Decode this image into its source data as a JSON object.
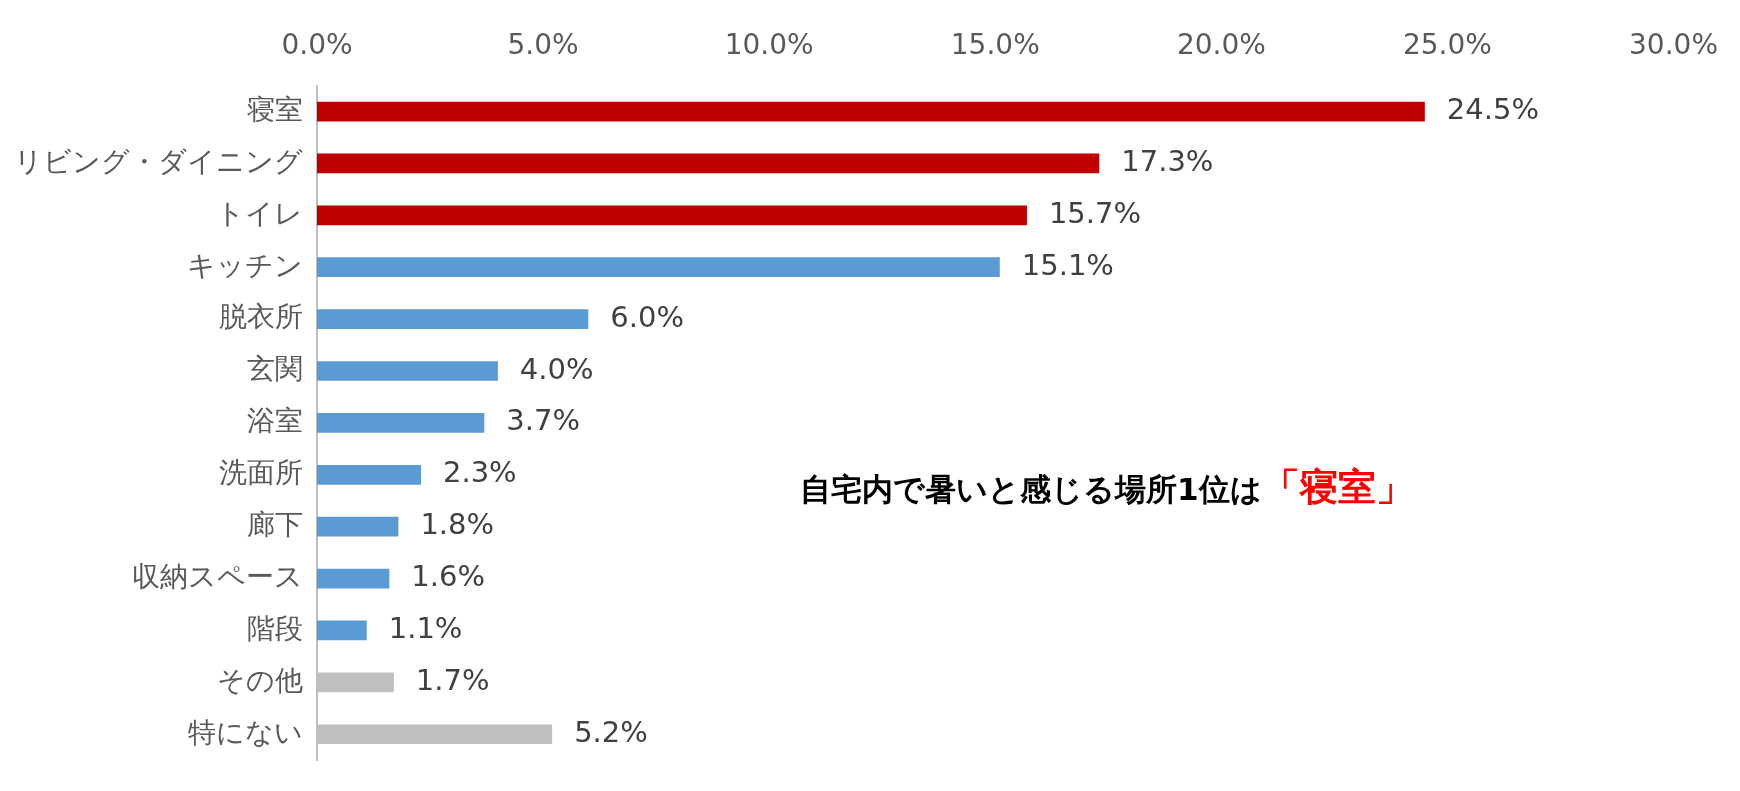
{
  "chart_data": {
    "type": "bar",
    "orientation": "horizontal",
    "categories": [
      "寝室",
      "リビング・ダイニング",
      "トイレ",
      "キッチン",
      "脱衣所",
      "玄関",
      "浴室",
      "洗面所",
      "廊下",
      "収納スペース",
      "階段",
      "その他",
      "特にない"
    ],
    "values": [
      24.5,
      17.3,
      15.7,
      15.1,
      6.0,
      4.0,
      3.7,
      2.3,
      1.8,
      1.6,
      1.1,
      1.7,
      5.2
    ],
    "colors": [
      "#c00000",
      "#c00000",
      "#c00000",
      "#5b9bd5",
      "#5b9bd5",
      "#5b9bd5",
      "#5b9bd5",
      "#5b9bd5",
      "#5b9bd5",
      "#5b9bd5",
      "#5b9bd5",
      "#bfbfbf",
      "#bfbfbf"
    ],
    "value_labels": [
      "24.5%",
      "17.3%",
      "15.7%",
      "15.1%",
      "6.0%",
      "4.0%",
      "3.7%",
      "2.3%",
      "1.8%",
      "1.6%",
      "1.1%",
      "1.7%",
      "5.2%"
    ],
    "xlim": [
      0,
      30
    ],
    "xticks": [
      {
        "value": 0,
        "label": "0.0%"
      },
      {
        "value": 5,
        "label": "5.0%"
      },
      {
        "value": 10,
        "label": "10.0%"
      },
      {
        "value": 15,
        "label": "15.0%"
      },
      {
        "value": 20,
        "label": "20.0%"
      },
      {
        "value": 25,
        "label": "25.0%"
      },
      {
        "value": 30,
        "label": "30.0%"
      }
    ],
    "grid": false,
    "legend": false,
    "annotations": [
      "自宅内で暑いと感じる場所1位は",
      "「寝室」"
    ]
  }
}
